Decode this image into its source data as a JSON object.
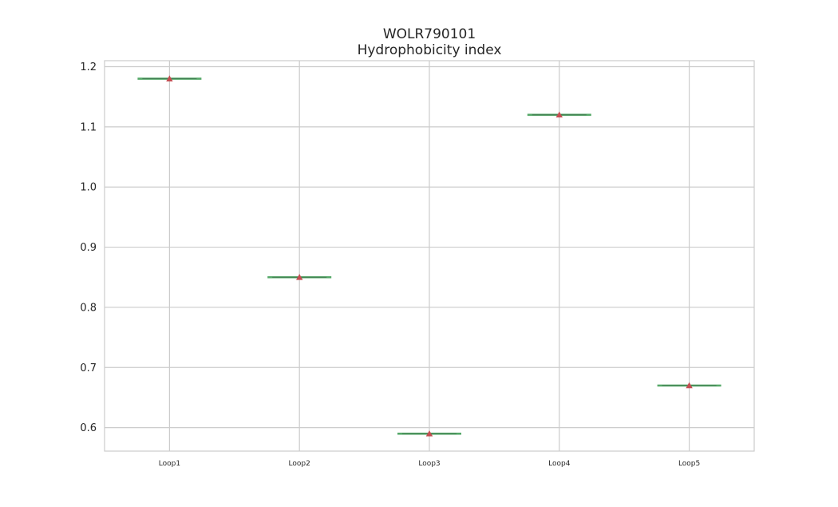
{
  "chart_data": {
    "type": "box",
    "title": [
      "WOLR790101",
      "Hydrophobicity index"
    ],
    "xlabel": "",
    "ylabel": "",
    "categories": [
      "Loop1",
      "Loop2",
      "Loop3",
      "Loop4",
      "Loop5"
    ],
    "values": [
      1.18,
      0.85,
      0.59,
      1.12,
      0.67
    ],
    "yticks": [
      "0.6",
      "0.7",
      "0.8",
      "0.9",
      "1.0",
      "1.1",
      "1.2"
    ],
    "ylim": [
      0.561,
      1.21
    ],
    "grid": true,
    "colors": {
      "box": "#55a868",
      "mean_marker": "#c44e52",
      "grid": "#cccccc",
      "frame": "#cccccc",
      "text": "#262626"
    }
  }
}
